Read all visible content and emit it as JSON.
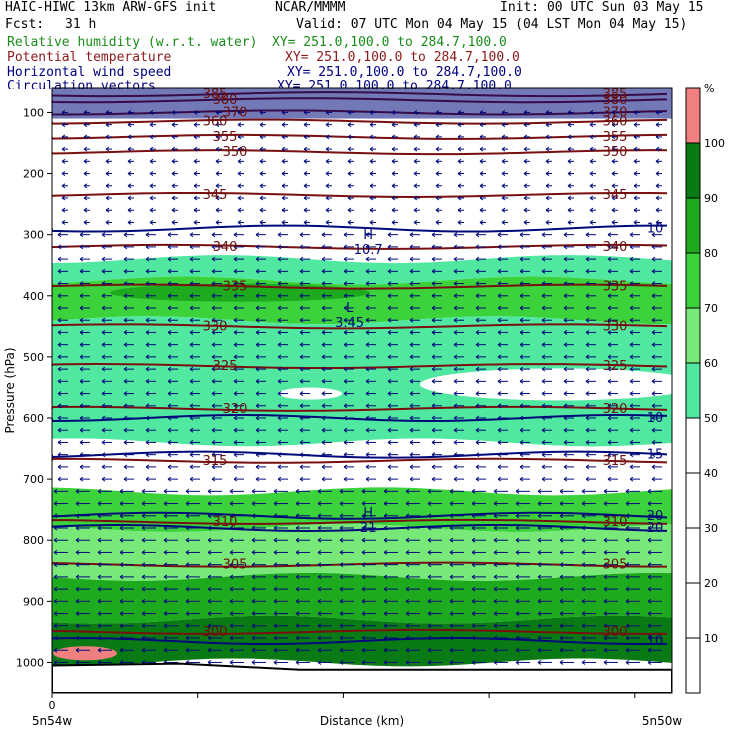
{
  "header": {
    "model": "HAIC-HIWC 13km ARW-GFS init",
    "center": "NCAR/MMMM",
    "init": "Init: 00 UTC Sun 03 May 15",
    "fcst_label": "Fcst:",
    "fcst_value": "31 h",
    "valid": "Valid: 07 UTC Mon 04 May 15 (04 LST Mon 04 May 15)",
    "fields": [
      {
        "name": "Relative humidity (w.r.t. water)",
        "xy": "XY= 251.0,100.0 to 284.7,100.0",
        "color": "#1a8c1a"
      },
      {
        "name": "Potential temperature",
        "xy": "XY= 251.0,100.0 to 284.7,100.0",
        "color": "#8b1a1a"
      },
      {
        "name": "Horizontal wind speed",
        "xy": "XY= 251.0,100.0 to 284.7,100.0",
        "color": "#000080"
      },
      {
        "name": "Circulation vectors",
        "xy": "XY= 251.0,100.0 to 284.7,100.0",
        "color": "#000080"
      }
    ]
  },
  "chart_data": {
    "type": "heatmap",
    "xlabel": "Distance (km)",
    "ylabel": "Pressure (hPa)",
    "x_tick_labels": [
      "0"
    ],
    "x_end_labels": [
      "5n54w",
      "5n50w"
    ],
    "y_ticks": [
      100,
      200,
      300,
      400,
      500,
      600,
      700,
      800,
      900,
      1000
    ],
    "ylim": [
      1050,
      60
    ],
    "colorbar": {
      "unit": "%",
      "ticks": [
        10,
        20,
        30,
        40,
        50,
        60,
        70,
        80,
        90,
        100
      ],
      "colors": [
        "#ffffff",
        "#ffffff",
        "#ffffff",
        "#ffffff",
        "#ffffff",
        "#50e8a0",
        "#78e878",
        "#3cd23c",
        "#1eaa1e",
        "#0a7a14",
        "#f08080"
      ]
    },
    "rh_layers": [
      {
        "p_top": 60,
        "p_bot": 340,
        "rh": 15
      },
      {
        "p_top": 340,
        "p_bot": 375,
        "rh": 55
      },
      {
        "p_top": 375,
        "p_bot": 440,
        "rh": 75
      },
      {
        "p_top": 440,
        "p_bot": 520,
        "rh": 55
      },
      {
        "p_top": 520,
        "p_bot": 640,
        "rh": 55
      },
      {
        "p_top": 640,
        "p_bot": 720,
        "rh": 45
      },
      {
        "p_top": 720,
        "p_bot": 780,
        "rh": 75
      },
      {
        "p_top": 780,
        "p_bot": 860,
        "rh": 65
      },
      {
        "p_top": 860,
        "p_bot": 930,
        "rh": 85
      },
      {
        "p_top": 930,
        "p_bot": 1000,
        "rh": 95
      }
    ],
    "theta_isentropes": [
      {
        "label": "385",
        "p": 70
      },
      {
        "label": "380",
        "p": 80
      },
      {
        "label": "370",
        "p": 100
      },
      {
        "label": "360",
        "p": 115
      },
      {
        "label": "355",
        "p": 140
      },
      {
        "label": "350",
        "p": 165
      },
      {
        "label": "345",
        "p": 235
      },
      {
        "label": "340",
        "p": 320
      },
      {
        "label": "335",
        "p": 385
      },
      {
        "label": "330",
        "p": 450
      },
      {
        "label": "325",
        "p": 515
      },
      {
        "label": "320",
        "p": 585
      },
      {
        "label": "315",
        "p": 670
      },
      {
        "label": "310",
        "p": 770
      },
      {
        "label": "305",
        "p": 840
      },
      {
        "label": "300",
        "p": 950
      }
    ],
    "wind_speed_contours": [
      {
        "label": "10",
        "p": 290
      },
      {
        "label": "10",
        "p": 600
      },
      {
        "label": "15",
        "p": 660
      },
      {
        "label": "20",
        "p": 760
      },
      {
        "label": "20",
        "p": 780
      },
      {
        "label": "10",
        "p": 965
      }
    ],
    "extrema": [
      {
        "label": "H",
        "value": "10.7",
        "p": 320,
        "x_frac": 0.51
      },
      {
        "label": "L",
        "value": "3.45",
        "p": 440,
        "x_frac": 0.48
      },
      {
        "label": "H",
        "value": "21",
        "p": 775,
        "x_frac": 0.51
      }
    ]
  }
}
